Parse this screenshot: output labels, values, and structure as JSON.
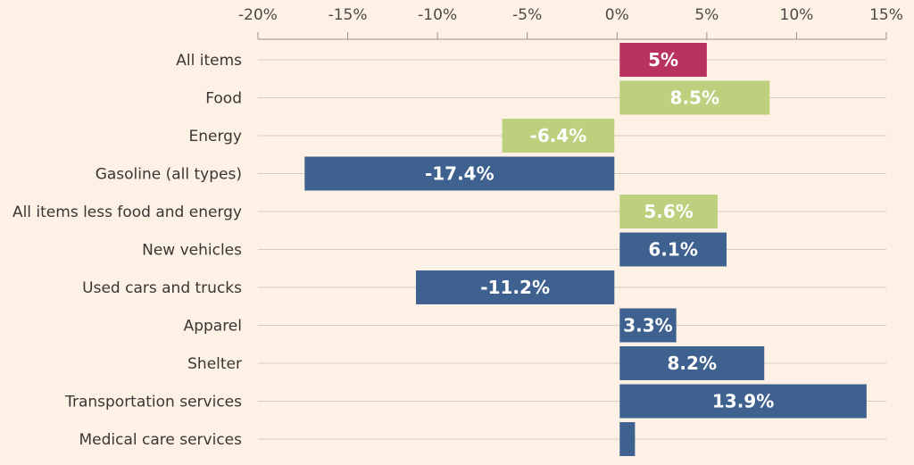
{
  "chart_data": {
    "type": "bar",
    "orientation": "horizontal",
    "categories": [
      "All items",
      "Food",
      "Energy",
      "Gasoline (all types)",
      "All items less food and energy",
      "New vehicles",
      "Used cars and trucks",
      "Apparel",
      "Shelter",
      "Transportation services",
      "Medical care services"
    ],
    "values": [
      5,
      8.5,
      -6.4,
      -17.4,
      5.6,
      6.1,
      -11.2,
      3.3,
      8.2,
      13.9,
      1
    ],
    "data_labels": [
      "5%",
      "8.5%",
      "-6.4%",
      "-17.4%",
      "5.6%",
      "6.1%",
      "-11.2%",
      "3.3%",
      "8.2%",
      "13.9%",
      ""
    ],
    "colors": [
      "#b8325f",
      "#bcd07e",
      "#bcd07e",
      "#3f6190",
      "#bcd07e",
      "#3f6190",
      "#3f6190",
      "#3f6190",
      "#3f6190",
      "#3f6190",
      "#3f6190"
    ],
    "xlim": [
      -20,
      15
    ],
    "xticks": [
      -20,
      -15,
      -10,
      -5,
      0,
      5,
      10,
      15
    ],
    "xtick_labels": [
      "-20%",
      "-15%",
      "-10%",
      "-5%",
      "0%",
      "5%",
      "10%",
      "15%"
    ],
    "x_axis_position": "top",
    "grid": "horizontal",
    "title": "",
    "xlabel": "",
    "ylabel": ""
  }
}
